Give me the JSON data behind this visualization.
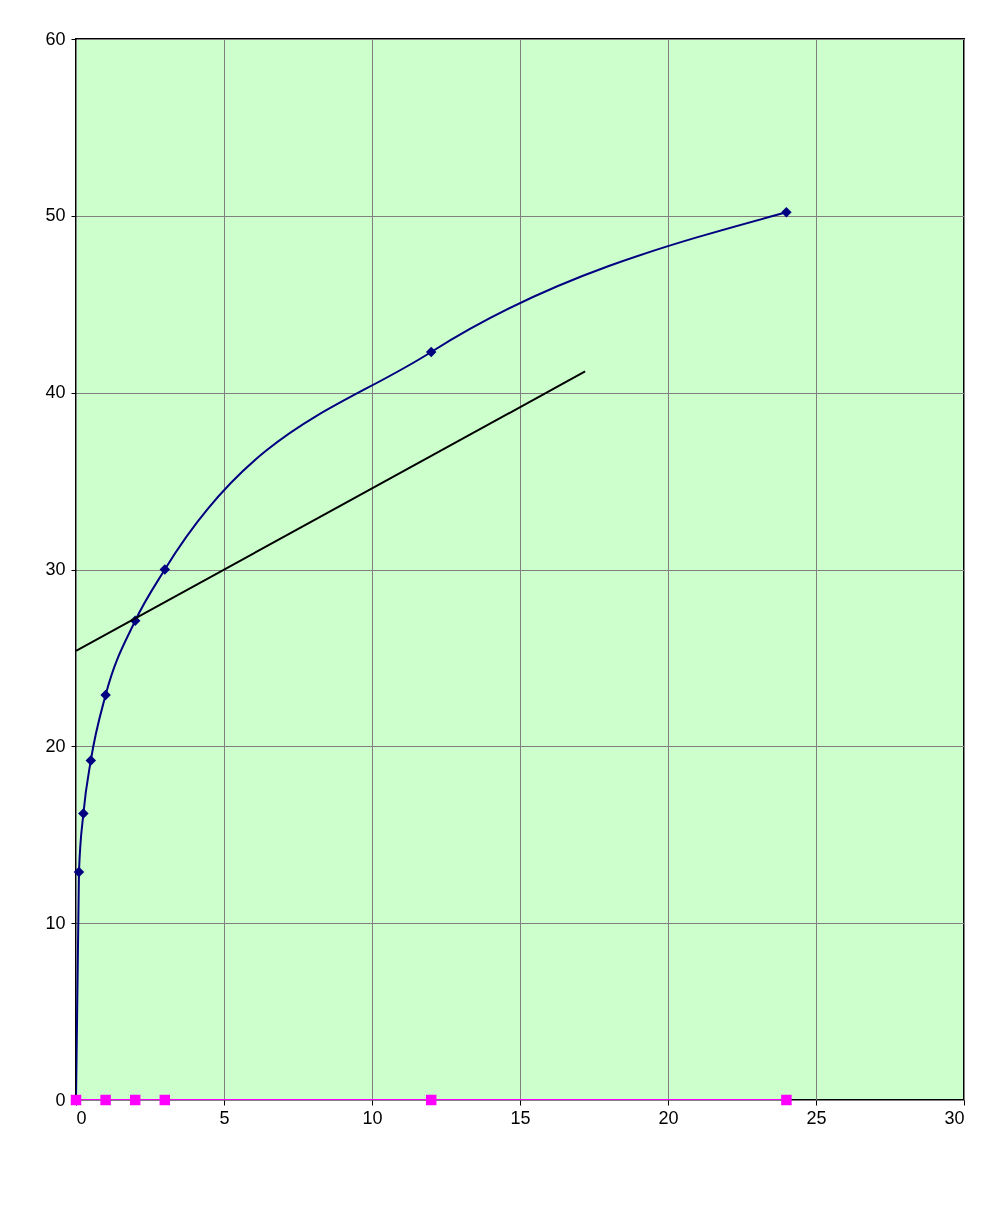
{
  "chart_data": {
    "type": "line",
    "xlim": [
      0,
      30
    ],
    "ylim": [
      0,
      60
    ],
    "xticks": [
      0,
      5,
      10,
      15,
      20,
      25,
      30
    ],
    "yticks": [
      0,
      10,
      20,
      30,
      40,
      50,
      60
    ],
    "grid": true,
    "line_style": "solid",
    "series": [
      {
        "color": "#000080",
        "marker": "diamond",
        "x": [
          0,
          0.1,
          0.25,
          0.5,
          1,
          2,
          3,
          12,
          24
        ],
        "values": [
          0,
          12.9,
          16.2,
          19.2,
          22.9,
          27.1,
          30.0,
          42.3,
          50.2
        ]
      },
      {
        "color": "#ff00ff",
        "marker": "square",
        "x": [
          0,
          1,
          2,
          3,
          12,
          24
        ],
        "values": [
          0,
          0,
          0,
          0,
          0,
          0
        ]
      },
      {
        "color": "#000000",
        "marker": "none",
        "x": [
          0,
          17.2
        ],
        "values": [
          25.4,
          41.2
        ]
      }
    ]
  }
}
